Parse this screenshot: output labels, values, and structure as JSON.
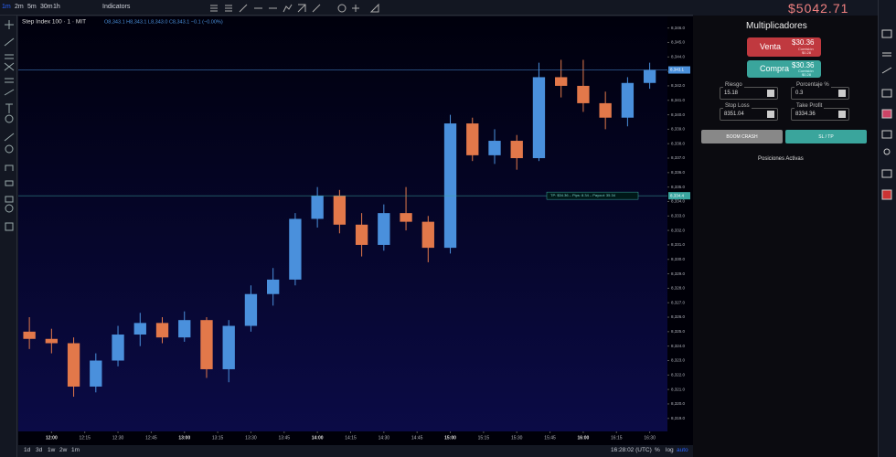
{
  "chart_data": {
    "type": "candlestick",
    "title": "Step Index 100 · 1 · MIT",
    "ohlc_text": "O8,343.1 H8,343.1 L8,343.0 C8,343.1 −0.1 (−0.00%)",
    "up_color": "#4a90dc",
    "down_color": "#e2784a",
    "x": [
      "11:50",
      "12:00",
      "12:10",
      "12:20",
      "12:30",
      "12:40",
      "12:50",
      "13:00",
      "13:10",
      "13:20",
      "13:30",
      "13:40",
      "13:50",
      "14:00",
      "14:10",
      "14:20",
      "14:30",
      "14:40",
      "14:50",
      "15:00",
      "15:10",
      "15:20",
      "15:30",
      "15:40",
      "15:50",
      "16:00",
      "16:10",
      "16:20",
      "16:30"
    ],
    "open": [
      8325.0,
      8324.5,
      8324.2,
      8321.2,
      8323.0,
      8324.8,
      8325.6,
      8324.6,
      8325.8,
      8322.4,
      8325.4,
      8327.6,
      8328.6,
      8332.8,
      8334.4,
      8332.4,
      8331.0,
      8333.2,
      8332.6,
      8330.8,
      8339.4,
      8337.2,
      8338.2,
      8337.0,
      8342.6,
      8342.0,
      8340.8,
      8339.8,
      8342.2
    ],
    "high": [
      8326.0,
      8325.2,
      8324.6,
      8323.5,
      8325.4,
      8326.3,
      8326.0,
      8326.4,
      8326.0,
      8325.8,
      8328.2,
      8329.4,
      8333.2,
      8335.0,
      8334.8,
      8333.2,
      8333.8,
      8335.0,
      8333.0,
      8340.0,
      8339.8,
      8339.0,
      8338.6,
      8343.6,
      8343.8,
      8343.8,
      8341.6,
      8342.6,
      8343.6
    ],
    "low": [
      8323.8,
      8323.5,
      8320.5,
      8320.8,
      8322.6,
      8324.0,
      8324.2,
      8324.3,
      8321.8,
      8321.5,
      8325.0,
      8326.8,
      8328.2,
      8332.2,
      8331.8,
      8330.2,
      8330.6,
      8332.0,
      8329.8,
      8330.4,
      8336.8,
      8336.6,
      8336.2,
      8336.8,
      8341.2,
      8340.2,
      8339.0,
      8339.2,
      8341.8
    ],
    "close": [
      8324.5,
      8324.2,
      8321.2,
      8323.0,
      8324.8,
      8325.6,
      8324.6,
      8325.8,
      8322.4,
      8325.4,
      8327.6,
      8328.6,
      8332.8,
      8334.4,
      8332.4,
      8331.0,
      8333.2,
      8332.6,
      8330.8,
      8339.4,
      8337.2,
      8338.2,
      8337.0,
      8342.6,
      8342.0,
      8340.8,
      8339.8,
      8342.2,
      8343.1
    ],
    "xlim": [
      "11:45",
      "16:38"
    ],
    "xticks": [
      "12:00",
      "12:15",
      "12:30",
      "12:45",
      "13:00",
      "13:15",
      "13:30",
      "13:45",
      "14:00",
      "14:15",
      "14:30",
      "14:45",
      "15:00",
      "15:15",
      "15:30",
      "15:45",
      "16:00",
      "16:15",
      "16:30"
    ],
    "ylim": [
      8318.1,
      8346.8
    ],
    "yticks": [
      {
        "value": 8319,
        "label": "8,319.0"
      },
      {
        "value": 8320,
        "label": "8,320.0"
      },
      {
        "value": 8321,
        "label": "8,321.0"
      },
      {
        "value": 8322,
        "label": "8,322.0"
      },
      {
        "value": 8323,
        "label": "8,323.0"
      },
      {
        "value": 8324,
        "label": "8,324.0"
      },
      {
        "value": 8325,
        "label": "8,325.0"
      },
      {
        "value": 8326,
        "label": "8,326.0"
      },
      {
        "value": 8327,
        "label": "8,327.0"
      },
      {
        "value": 8328,
        "label": "8,328.0"
      },
      {
        "value": 8329,
        "label": "8,329.0"
      },
      {
        "value": 8330,
        "label": "8,330.0"
      },
      {
        "value": 8331,
        "label": "8,331.0"
      },
      {
        "value": 8332,
        "label": "8,332.0"
      },
      {
        "value": 8333,
        "label": "8,333.0"
      },
      {
        "value": 8334,
        "label": "8,334.0"
      },
      {
        "value": 8335,
        "label": "8,335.0"
      },
      {
        "value": 8336,
        "label": "8,336.0"
      },
      {
        "value": 8337,
        "label": "8,337.0"
      },
      {
        "value": 8338,
        "label": "8,338.0"
      },
      {
        "value": 8339,
        "label": "8,339.0"
      },
      {
        "value": 8340,
        "label": "8,340.0"
      },
      {
        "value": 8341,
        "label": "8,341.0"
      },
      {
        "value": 8342,
        "label": "8,342.0"
      },
      {
        "value": 8343,
        "label": "8,343.0"
      },
      {
        "value": 8344,
        "label": "8,344.0"
      },
      {
        "value": 8345,
        "label": "8,345.0"
      },
      {
        "value": 8346,
        "label": "8,346.0"
      }
    ],
    "price_lines": [
      {
        "value": 8343.1,
        "label": "8,343.1",
        "color": "#4a90dc"
      },
      {
        "value": 8334.4,
        "label": "8,334.4",
        "color": "#3aa6a0"
      }
    ],
    "tp_label": "TP: $34.36 – Pips: 8.34 – Payout: 35.34",
    "grid": false
  },
  "ui": {
    "intervals": [
      "1m",
      "2m",
      "5m",
      "30m",
      "1h"
    ],
    "indicators": "Indicators",
    "ranges": [
      "1d",
      "3d",
      "1w",
      "2w",
      "1m"
    ],
    "clock": "16:28:02 (UTC)",
    "scale_opts": [
      "%",
      "log",
      "auto"
    ],
    "balance": "$5042.71",
    "panel_title": "Multiplicadores",
    "sell": {
      "label": "Venta",
      "price": "$30.36",
      "fee_label": "Comisión",
      "fee": "$0.28"
    },
    "buy": {
      "label": "Compra",
      "price": "$30.36",
      "fee_label": "Comisión",
      "fee": "$0.28"
    },
    "fields": [
      {
        "label": "Riesgo",
        "value": "15.18"
      },
      {
        "label": "Porcentaje %",
        "value": "0.3"
      },
      {
        "label": "Stop Loss",
        "value": "8351.04"
      },
      {
        "label": "Take Profit",
        "value": "8334.36"
      }
    ],
    "buttons": [
      "BOOM CRASH",
      "SL / TP"
    ],
    "positions": "Posiciones Activas"
  }
}
